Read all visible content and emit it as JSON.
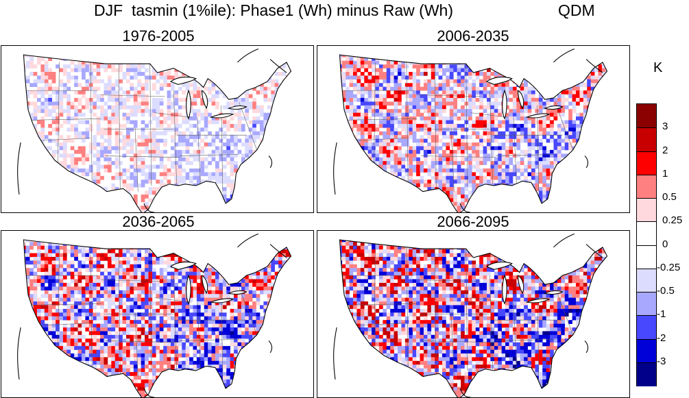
{
  "header": {
    "title": "DJF  tasmin (1%ile): Phase1 (Wh) minus Raw (Wh)",
    "method": "QDM"
  },
  "panels": [
    {
      "label": "1976-2005",
      "intensity": 0.35
    },
    {
      "label": "2006-2035",
      "intensity": 0.65
    },
    {
      "label": "2036-2065",
      "intensity": 0.85
    },
    {
      "label": "2066-2095",
      "intensity": 1.0
    }
  ],
  "colorbar": {
    "unit": "K",
    "labels": [
      "3",
      "2",
      "1",
      "0.5",
      "0.25",
      "0",
      "-0.25",
      "-0.5",
      "-1",
      "-2",
      "-3"
    ],
    "colors": [
      "#8b0000",
      "#c80000",
      "#ff0000",
      "#ff8080",
      "#ffd9dd",
      "#ffffff",
      "#ffffff",
      "#dcdcff",
      "#a8a8ff",
      "#4848ff",
      "#0000d8",
      "#00008a"
    ]
  },
  "chart_data": {
    "type": "heatmap",
    "title": "DJF  tasmin (1%ile): Phase1 (Wh) minus Raw (Wh)",
    "subtitle": "QDM",
    "panels": [
      "1976-2005",
      "2006-2035",
      "2036-2065",
      "2066-2095"
    ],
    "colorbar_unit": "K",
    "colorbar_levels": [
      -3,
      -2,
      -1,
      -0.5,
      -0.25,
      0,
      0.25,
      0.5,
      1,
      2,
      3
    ],
    "grid": false,
    "legend_position": "right"
  }
}
